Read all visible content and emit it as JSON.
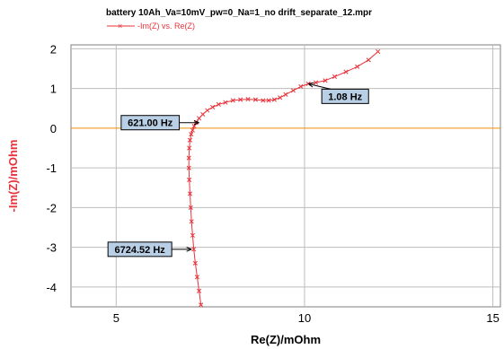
{
  "chart_data": {
    "type": "line",
    "title": "battery 10Ah_Va=10mV_pw=0_Na=1_no drift_separate_12.mpr",
    "legend": {
      "label": "-Im(Z) vs. Re(Z)",
      "placement": "top-left",
      "color": "#e8323a"
    },
    "xlabel": "Re(Z)/mOhm",
    "ylabel": "-Im(Z)/mOhm",
    "xlim": [
      3.8,
      15.2
    ],
    "ylim": [
      -4.5,
      2.1
    ],
    "xticks": [
      5,
      10,
      15
    ],
    "yticks": [
      2,
      1,
      0,
      -1,
      -2,
      -3,
      -4
    ],
    "grid": true,
    "zero_line_color": "#f28c00",
    "series": [
      {
        "name": "-Im(Z) vs. Re(Z)",
        "color": "#e8323a",
        "marker": "x",
        "x": [
          7.25,
          7.2,
          7.15,
          7.1,
          7.06,
          7.03,
          7.0,
          6.98,
          6.96,
          6.94,
          6.93,
          6.93,
          6.94,
          6.96,
          6.99,
          7.03,
          7.07,
          7.12,
          7.2,
          7.3,
          7.42,
          7.56,
          7.72,
          7.9,
          8.1,
          8.3,
          8.5,
          8.7,
          8.9,
          9.05,
          9.2,
          9.35,
          9.5,
          9.7,
          9.9,
          10.1,
          10.3,
          10.55,
          10.8,
          11.1,
          11.4,
          11.7,
          11.95
        ],
        "y": [
          -4.45,
          -4.1,
          -3.75,
          -3.4,
          -3.05,
          -2.7,
          -2.35,
          -2.0,
          -1.65,
          -1.3,
          -1.0,
          -0.75,
          -0.5,
          -0.3,
          -0.15,
          -0.05,
          0.05,
          0.14,
          0.25,
          0.35,
          0.45,
          0.53,
          0.6,
          0.65,
          0.7,
          0.72,
          0.73,
          0.72,
          0.7,
          0.7,
          0.72,
          0.77,
          0.85,
          0.95,
          1.05,
          1.12,
          1.15,
          1.2,
          1.3,
          1.42,
          1.55,
          1.72,
          1.93
        ]
      }
    ],
    "annotations": [
      {
        "text": "621.00 Hz",
        "x": 7.2,
        "y": 0.14,
        "side": "left"
      },
      {
        "text": "1.08 Hz",
        "x": 10.1,
        "y": 1.12,
        "side": "right"
      },
      {
        "text": "6724.52 Hz",
        "x": 7.0,
        "y": -3.05,
        "side": "left"
      }
    ]
  }
}
